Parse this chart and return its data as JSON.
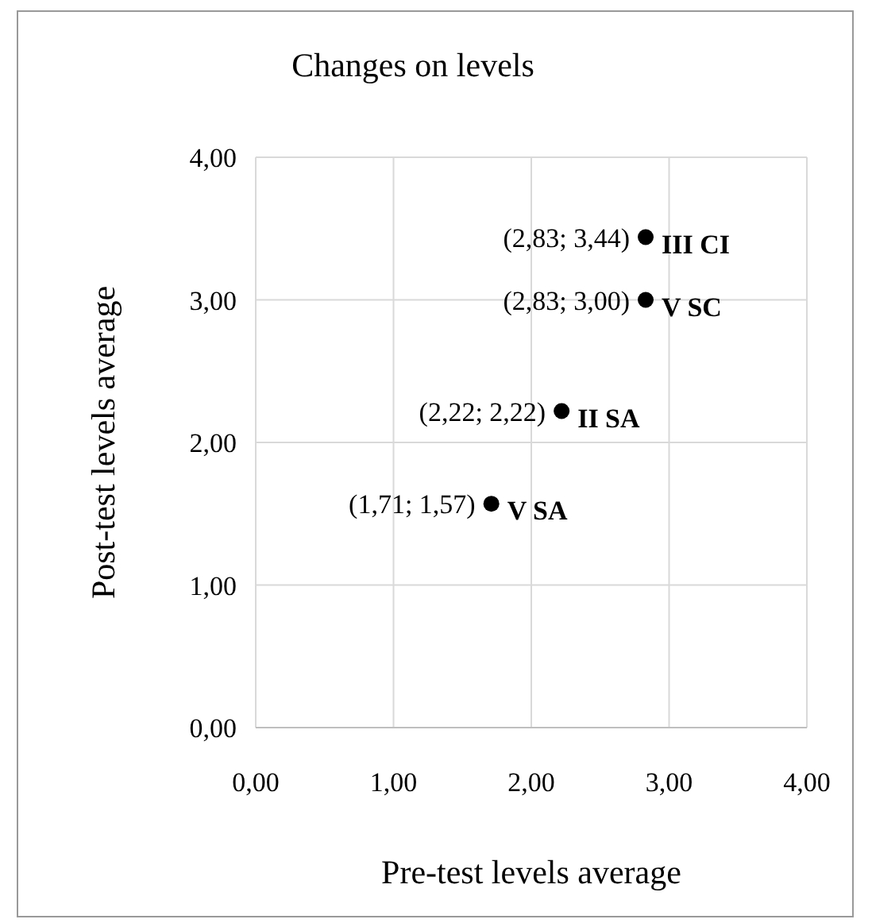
{
  "chart_data": {
    "type": "scatter",
    "title": "Changes on levels",
    "xlabel": "Pre-test levels average",
    "ylabel": "Post-test levels average",
    "series": [
      {
        "color": "#000000",
        "x": [
          2.83,
          2.83,
          2.22,
          1.71
        ],
        "values": [
          3.44,
          3.0,
          2.22,
          1.57
        ],
        "value_labels": [
          "(2,83; 3,44)",
          "(2,83; 3,00)",
          "(2,22; 2,22)",
          "(1,71; 1,57)"
        ]
      }
    ],
    "annotations": [
      {
        "text": "III CI",
        "x": 2.83,
        "y": 3.44
      },
      {
        "text": "V SC",
        "x": 2.83,
        "y": 3.0
      },
      {
        "text": "II SA",
        "x": 2.22,
        "y": 2.22
      },
      {
        "text": "V SA",
        "x": 1.71,
        "y": 1.57
      }
    ],
    "xlim": [
      0,
      4
    ],
    "ylim": [
      0,
      4
    ],
    "xticks": [
      {
        "value": 0,
        "label": "0,00"
      },
      {
        "value": 1,
        "label": "1,00"
      },
      {
        "value": 2,
        "label": "2,00"
      },
      {
        "value": 3,
        "label": "3,00"
      },
      {
        "value": 4,
        "label": "4,00"
      }
    ],
    "yticks": [
      {
        "value": 0,
        "label": "0,00"
      },
      {
        "value": 1,
        "label": "1,00"
      },
      {
        "value": 2,
        "label": "2,00"
      },
      {
        "value": 3,
        "label": "3,00"
      },
      {
        "value": 4,
        "label": "4,00"
      }
    ],
    "grid": true,
    "marker": "circle"
  }
}
